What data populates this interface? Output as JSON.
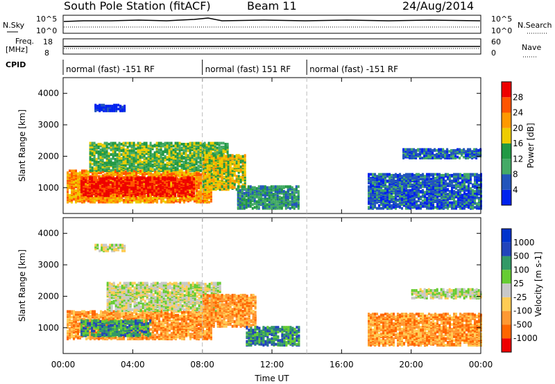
{
  "header": {
    "station": "South Pole Station (fitACF)",
    "beam": "Beam 11",
    "date": "24/Aug/2014"
  },
  "top_panels": {
    "nsky_label": "N.Sky",
    "nsky_ticks": [
      "10^5",
      "10^0"
    ],
    "nsearch_label": "N.Search",
    "nsearch_ticks": [
      "10^5",
      "10^0"
    ],
    "freq_label_1": "Freq.",
    "freq_label_2": "[MHz]",
    "freq_ticks": [
      "18",
      "8"
    ],
    "nave_label": "Nave",
    "nave_ticks": [
      "60",
      "0"
    ],
    "cpid_label": "CPID",
    "cpid_segments": [
      {
        "start": 0,
        "end": 8,
        "label": "normal (fast) -151 RF"
      },
      {
        "start": 8,
        "end": 14,
        "label": "normal (fast) 151 RF"
      },
      {
        "start": 14,
        "end": 24,
        "label": "normal (fast) -151 RF"
      }
    ]
  },
  "colors": {
    "power": [
      "#0022ee",
      "#2255bb",
      "#44aa66",
      "#229944",
      "#eecc00",
      "#ff9900",
      "#ff5500",
      "#ee0000"
    ],
    "velocity": [
      "#ee0000",
      "#ff6600",
      "#ff9933",
      "#ffcc55",
      "#c8c8c8",
      "#66cc33",
      "#339966",
      "#2244bb",
      "#0033cc"
    ]
  },
  "chart_data": [
    {
      "type": "heatmap",
      "panel": "power",
      "ylabel": "Slant Range [km]",
      "xlabel": "",
      "xlim": [
        0,
        24
      ],
      "ylim": [
        180,
        4500
      ],
      "y_ticks": [
        "1000",
        "2000",
        "3000",
        "4000"
      ],
      "colorbar_label": "Power [dB]",
      "colorbar_ticks": [
        "4",
        "8",
        "12",
        "16",
        "20",
        "24",
        "28"
      ],
      "regions": [
        {
          "t0": 0.2,
          "t1": 8.5,
          "r0": 500,
          "r1": 1500,
          "level": 5
        },
        {
          "t0": 1.0,
          "t1": 7.5,
          "r0": 700,
          "r1": 1300,
          "level": 7
        },
        {
          "t0": 1.5,
          "t1": 9.5,
          "r0": 1500,
          "r1": 2400,
          "level": 3
        },
        {
          "t0": 8.0,
          "t1": 10.5,
          "r0": 900,
          "r1": 2000,
          "level": 4
        },
        {
          "t0": 10.0,
          "t1": 13.5,
          "r0": 300,
          "r1": 1000,
          "level": 2
        },
        {
          "t0": 17.5,
          "t1": 24,
          "r0": 300,
          "r1": 1400,
          "level": 1
        },
        {
          "t0": 19.5,
          "t1": 24,
          "r0": 1900,
          "r1": 2200,
          "level": 1
        },
        {
          "t0": 1.8,
          "t1": 3.5,
          "r0": 3400,
          "r1": 3600,
          "level": 0
        }
      ]
    },
    {
      "type": "heatmap",
      "panel": "velocity",
      "ylabel": "Slant Range [km]",
      "xlabel": "Time UT",
      "xlim": [
        0,
        24
      ],
      "ylim": [
        180,
        4500
      ],
      "y_ticks": [
        "1000",
        "2000",
        "3000",
        "4000"
      ],
      "x_ticks": [
        "00:00",
        "04:00",
        "08:00",
        "12:00",
        "16:00",
        "20:00",
        "00:00"
      ],
      "colorbar_label": "Velocity [m s-1]",
      "colorbar_ticks": [
        "1000",
        "500",
        "100",
        "25",
        "-25",
        "-100",
        "-500",
        "-1000"
      ],
      "regions": [
        {
          "t0": 0.2,
          "t1": 8.5,
          "r0": 600,
          "r1": 1500,
          "level": 2
        },
        {
          "t0": 1.0,
          "t1": 5.0,
          "r0": 700,
          "r1": 1200,
          "level": 6
        },
        {
          "t0": 2.5,
          "t1": 9.0,
          "r0": 1500,
          "r1": 2400,
          "level": 4
        },
        {
          "t0": 8.0,
          "t1": 11.0,
          "r0": 1000,
          "r1": 2000,
          "level": 2
        },
        {
          "t0": 10.5,
          "t1": 13.5,
          "r0": 400,
          "r1": 1000,
          "level": 6
        },
        {
          "t0": 17.5,
          "t1": 24,
          "r0": 400,
          "r1": 1400,
          "level": 2
        },
        {
          "t0": 20.0,
          "t1": 24,
          "r0": 1900,
          "r1": 2200,
          "level": 4
        },
        {
          "t0": 1.8,
          "t1": 3.5,
          "r0": 3400,
          "r1": 3600,
          "level": 4
        }
      ]
    }
  ]
}
